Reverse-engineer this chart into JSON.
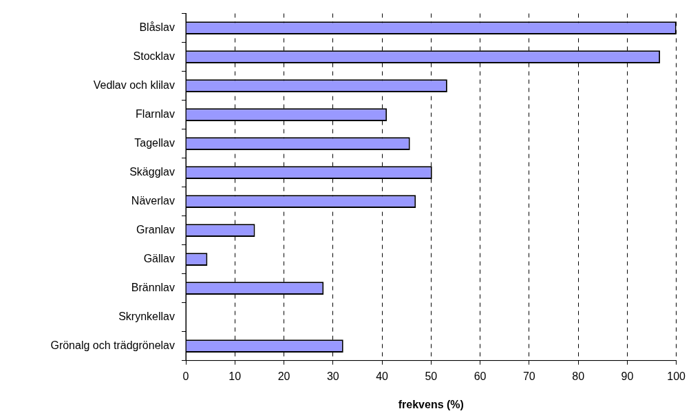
{
  "chart_data": {
    "type": "bar",
    "orientation": "horizontal",
    "xlabel": "frekvens (%)",
    "categories": [
      "Blåslav",
      "Stocklav",
      "Vedlav och klilav",
      "Flarnlav",
      "Tagellav",
      "Skägglav",
      "Näverlav",
      "Granlav",
      "Gällav",
      "Brännlav",
      "Skrynkellav",
      "Grönalg och trädgrönelav"
    ],
    "values": [
      100,
      96.7,
      53.3,
      41,
      45.7,
      50.2,
      46.9,
      14.1,
      4.4,
      28.1,
      0,
      32.1
    ],
    "color": "#9999ff",
    "xlim": [
      0,
      100
    ],
    "xticks": [
      0,
      10,
      20,
      30,
      40,
      50,
      60,
      70,
      80,
      90,
      100
    ],
    "grid": "x",
    "legend": false
  }
}
